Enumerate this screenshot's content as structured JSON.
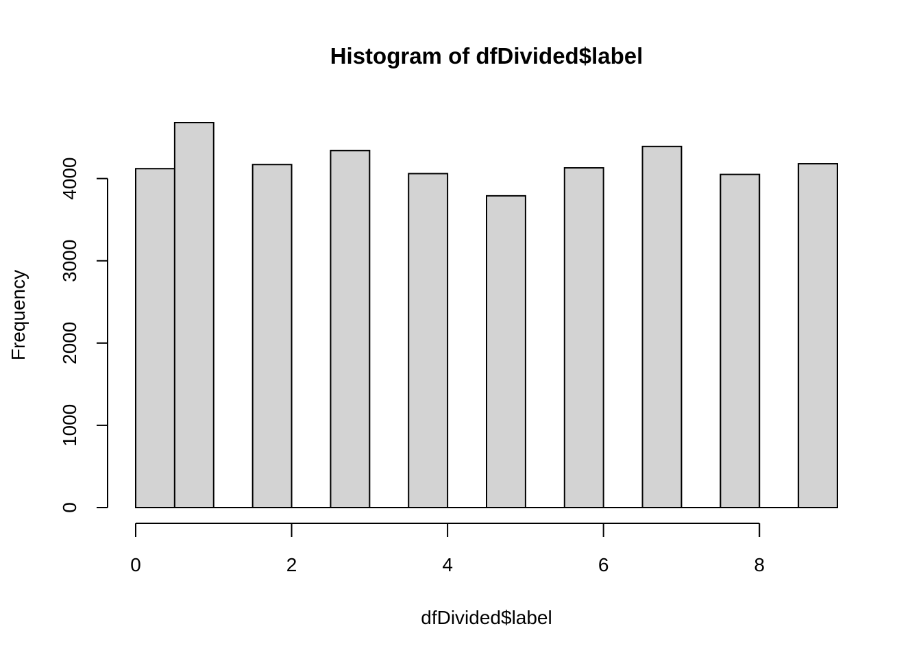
{
  "chart_data": {
    "type": "bar",
    "title": "Histogram of dfDivided$label",
    "xlabel": "dfDivided$label",
    "ylabel": "Frequency",
    "bins": [
      {
        "from": 0.0,
        "to": 0.5,
        "value": 4120
      },
      {
        "from": 0.5,
        "to": 1.0,
        "value": 4680
      },
      {
        "from": 1.5,
        "to": 2.0,
        "value": 4170
      },
      {
        "from": 2.5,
        "to": 3.0,
        "value": 4340
      },
      {
        "from": 3.5,
        "to": 4.0,
        "value": 4060
      },
      {
        "from": 4.5,
        "to": 5.0,
        "value": 3790
      },
      {
        "from": 5.5,
        "to": 6.0,
        "value": 4130
      },
      {
        "from": 6.5,
        "to": 7.0,
        "value": 4390
      },
      {
        "from": 7.5,
        "to": 8.0,
        "value": 4050
      },
      {
        "from": 8.5,
        "to": 9.0,
        "value": 4180
      }
    ],
    "x_ticks": [
      0,
      2,
      4,
      6,
      8
    ],
    "y_ticks": [
      0,
      1000,
      2000,
      3000,
      4000
    ],
    "xlim": [
      0,
      9
    ],
    "ylim": [
      0,
      4680
    ],
    "grid": false,
    "bar_fill": "#d3d3d3",
    "bar_stroke": "#000000"
  }
}
